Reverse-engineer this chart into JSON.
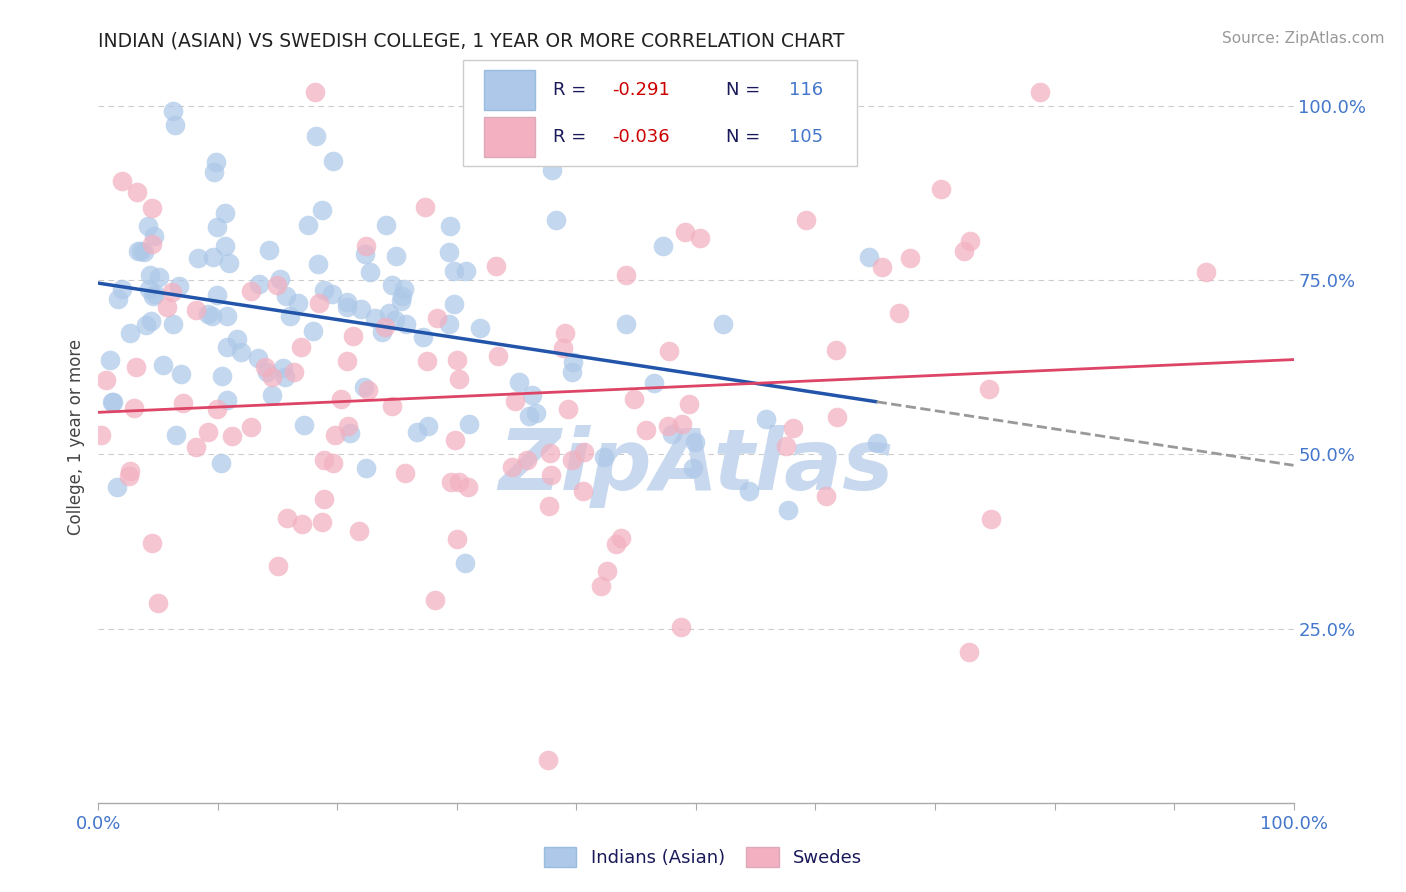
{
  "title": "INDIAN (ASIAN) VS SWEDISH COLLEGE, 1 YEAR OR MORE CORRELATION CHART",
  "source_text": "Source: ZipAtlas.com",
  "ylabel": "College, 1 year or more",
  "blue_R": -0.291,
  "blue_N": 116,
  "pink_R": -0.036,
  "pink_N": 105,
  "blue_color": "#adc8e8",
  "pink_color": "#f2b0c0",
  "blue_line_color": "#2255aa",
  "pink_line_color": "#dd4466",
  "xmin": 0.0,
  "xmax": 1.0,
  "ymin": 0.0,
  "ymax": 1.05,
  "grid_color": "#cccccc",
  "background_color": "#ffffff",
  "title_color": "#222222",
  "tick_label_color": "#4477cc",
  "watermark_text": "ZipAtlas",
  "watermark_color": "#c8d8ee",
  "blue_line_start_y": 0.785,
  "blue_line_end_y": 0.555,
  "blue_line_end_x": 0.85,
  "pink_line_start_y": 0.572,
  "pink_line_end_y": 0.555,
  "legend_labels": [
    "Indians (Asian)",
    "Swedes"
  ]
}
